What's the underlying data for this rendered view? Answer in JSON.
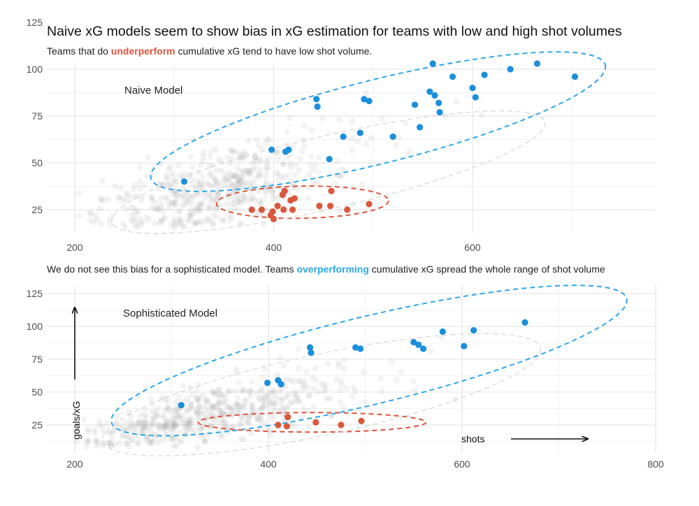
{
  "title": "Naive xG models seem to show bias in xG estimation for teams with low and high shot volumes",
  "subtitle1": {
    "before": "Teams that do ",
    "highlight": "underperform",
    "after": " cumulative xG tend to have low shot volume."
  },
  "subtitle2": {
    "before": "We do not see this bias for a sophisticated model. Teams ",
    "highlight": "overperforming",
    "after": " cumulative xG spread the whole range of shot volume"
  },
  "colors": {
    "over": "#1a8fdc",
    "under": "#d9583b",
    "background_points": "#9a9a9a",
    "over_ellipse": "#2ca7e8",
    "under_ellipse": "#e0533d"
  },
  "chart_data": [
    {
      "type": "scatter",
      "panel_label": "Naive Model",
      "xlabel": "",
      "ylabel": "",
      "xlim": [
        175,
        810
      ],
      "ylim": [
        8,
        128
      ],
      "xticks": [
        200,
        400,
        600
      ],
      "yticks": [
        25,
        50,
        75,
        100,
        125
      ],
      "grid": true,
      "series": [
        {
          "name": "overperform",
          "points": [
            [
              310,
              40
            ],
            [
              398,
              57
            ],
            [
              412,
              56
            ],
            [
              415,
              57
            ],
            [
              443,
              84
            ],
            [
              444,
              80
            ],
            [
              456,
              52
            ],
            [
              470,
              64
            ],
            [
              487,
              66
            ],
            [
              491,
              84
            ],
            [
              496,
              83
            ],
            [
              520,
              64
            ],
            [
              542,
              81
            ],
            [
              547,
              69
            ],
            [
              557,
              88
            ],
            [
              560,
              103
            ],
            [
              562,
              86
            ],
            [
              566,
              82
            ],
            [
              567,
              77
            ],
            [
              580,
              96
            ],
            [
              600,
              90
            ],
            [
              603,
              85
            ],
            [
              612,
              97
            ],
            [
              638,
              100
            ],
            [
              665,
              103
            ],
            [
              703,
              96
            ]
          ]
        },
        {
          "name": "underperform",
          "points": [
            [
              388,
              25
            ],
            [
              397,
              22
            ],
            [
              399,
              24
            ],
            [
              400,
              20
            ],
            [
              404,
              27
            ],
            [
              409,
              33
            ],
            [
              411,
              35
            ],
            [
              417,
              30
            ],
            [
              419,
              25
            ],
            [
              421,
              31
            ],
            [
              446,
              27
            ],
            [
              457,
              27
            ],
            [
              458,
              35
            ],
            [
              474,
              25
            ],
            [
              496,
              28
            ],
            [
              410,
              25
            ],
            [
              378,
              25
            ]
          ]
        }
      ]
    },
    {
      "type": "scatter",
      "panel_label": "Sophisticated Model",
      "xlabel": "shots",
      "ylabel": "goals/xG",
      "xlim": [
        175,
        810
      ],
      "ylim": [
        10,
        130
      ],
      "xticks": [
        200,
        400,
        600,
        800
      ],
      "yticks": [
        25,
        50,
        75,
        100,
        125
      ],
      "grid": true,
      "series": [
        {
          "name": "overperforming",
          "points": [
            [
              310,
              40
            ],
            [
              399,
              57
            ],
            [
              410,
              59
            ],
            [
              413,
              56
            ],
            [
              443,
              84
            ],
            [
              444,
              80
            ],
            [
              490,
              84
            ],
            [
              495,
              83
            ],
            [
              550,
              88
            ],
            [
              555,
              86
            ],
            [
              560,
              83
            ],
            [
              580,
              96
            ],
            [
              602,
              85
            ],
            [
              612,
              97
            ],
            [
              665,
              103
            ]
          ]
        },
        {
          "name": "underperforming",
          "points": [
            [
              410,
              25
            ],
            [
              419,
              24
            ],
            [
              420,
              31
            ],
            [
              449,
              27
            ],
            [
              475,
              25
            ],
            [
              496,
              28
            ]
          ]
        }
      ]
    }
  ]
}
